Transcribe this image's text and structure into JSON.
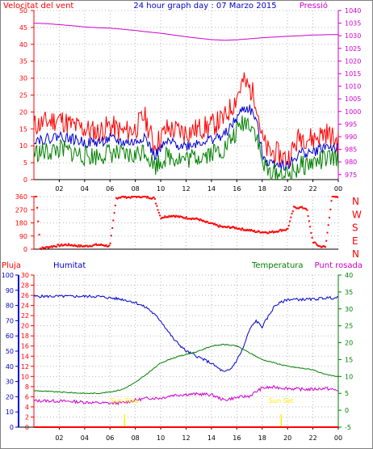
{
  "title": "24 hour graph day : 07 Marzo 2015",
  "colors": {
    "red": "#ff0000",
    "blue": "#0000cc",
    "green": "#008000",
    "magenta": "#cc00cc",
    "yellow": "#ffee00",
    "axis": "#000000",
    "grid": "#b8b8b8",
    "border": "#808080"
  },
  "chart_data": [
    {
      "type": "line",
      "title": "24 hour graph day : 07 Marzo 2015",
      "y_left_label": "Velocitat del vent",
      "y_right_label": "Pressió",
      "x_ticks": [
        "02",
        "04",
        "06",
        "08",
        "10",
        "12",
        "14",
        "16",
        "18",
        "20",
        "22",
        "00"
      ],
      "x_range": [
        0,
        24
      ],
      "y_left_ticks": [
        "0",
        "5",
        "10",
        "15",
        "20",
        "25",
        "30",
        "35",
        "40",
        "45",
        "50"
      ],
      "y_left_range": [
        0,
        50
      ],
      "y_right_ticks": [
        "975",
        "980",
        "985",
        "990",
        "995",
        "1000",
        "1005",
        "1010",
        "1015",
        "1020",
        "1025",
        "1030",
        "1035",
        "1040"
      ],
      "y_right_range": [
        973,
        1040
      ],
      "grid": true,
      "series": [
        {
          "axis": "right",
          "color": "magenta",
          "x": [
            0,
            1,
            2,
            3,
            4,
            5,
            6,
            7,
            8,
            9,
            10,
            11,
            12,
            13,
            14,
            15,
            16,
            17,
            18,
            19,
            20,
            21,
            22,
            23,
            24
          ],
          "y": [
            1035,
            1034.8,
            1034.4,
            1034,
            1033.5,
            1033.2,
            1033,
            1032.6,
            1032.1,
            1031.5,
            1031,
            1030.3,
            1029.6,
            1029,
            1028.5,
            1028.2,
            1028.4,
            1028.8,
            1029.2,
            1029.5,
            1029.8,
            1030,
            1030.3,
            1030.4,
            1030.5
          ]
        },
        {
          "axis": "left",
          "color": "red",
          "x": [
            0,
            1,
            2,
            3,
            4,
            5,
            6,
            7,
            8,
            8.7,
            9.5,
            10.5,
            12,
            13,
            14,
            15,
            15.8,
            16.5,
            17,
            17.5,
            18,
            18.5,
            19,
            20,
            21,
            22,
            23,
            24
          ],
          "y": [
            16,
            17,
            18,
            16,
            15,
            14,
            16,
            14,
            15,
            19,
            10,
            15,
            14,
            15,
            16,
            18,
            23,
            29,
            27,
            24,
            12,
            8,
            8,
            6,
            13,
            12,
            14,
            11
          ]
        },
        {
          "axis": "left",
          "color": "blue",
          "x": [
            0,
            1,
            2,
            3,
            4,
            5,
            6,
            7,
            8,
            8.7,
            9.5,
            10.5,
            12,
            13,
            14,
            15,
            15.8,
            16.5,
            17,
            17.5,
            18,
            18.5,
            19,
            20,
            21,
            22,
            23,
            24
          ],
          "y": [
            12,
            12,
            13,
            12,
            11,
            11,
            12,
            11,
            11,
            13,
            7,
            11,
            10,
            11,
            12,
            13,
            17,
            21,
            21,
            18,
            8,
            5,
            5,
            4,
            8,
            8,
            10,
            9
          ]
        },
        {
          "axis": "left",
          "color": "green",
          "x": [
            0,
            1,
            2,
            3,
            4,
            5,
            6,
            7,
            8,
            8.7,
            9.5,
            10.5,
            12,
            13,
            14,
            15,
            15.8,
            16.5,
            17,
            17.5,
            18,
            18.5,
            19,
            20,
            21,
            22,
            23,
            24
          ],
          "y": [
            8,
            8,
            9,
            8,
            7,
            7,
            8,
            7,
            7,
            9,
            4,
            7,
            6,
            7,
            8,
            9,
            13,
            17,
            17,
            14,
            5,
            2,
            2,
            1,
            4,
            5,
            6,
            6
          ]
        }
      ]
    },
    {
      "type": "scatter",
      "y_left_ticks": [
        "0",
        "90",
        "180",
        "270",
        "360"
      ],
      "y_range": [
        0,
        360
      ],
      "y_right_labels": [
        "N",
        "W",
        "S",
        "E",
        "N"
      ],
      "x_range": [
        0,
        24
      ],
      "grid": true,
      "series": [
        {
          "color": "red",
          "x": [
            0.2,
            0.5,
            1,
            1.5,
            2,
            2.5,
            3,
            3.5,
            4,
            4.5,
            5,
            5.5,
            6,
            6.5,
            7,
            7.5,
            8,
            8.5,
            9,
            9.5,
            10,
            10.5,
            11,
            11.5,
            12,
            12.5,
            13,
            13.5,
            14,
            14.5,
            15,
            15.5,
            16,
            16.5,
            17,
            17.5,
            18,
            18.5,
            19,
            19.5,
            20,
            20.5,
            21,
            21.5,
            22,
            22.5,
            23,
            23.5,
            24
          ],
          "y": [
            360,
            5,
            12,
            20,
            25,
            30,
            28,
            22,
            20,
            25,
            30,
            28,
            20,
            350,
            360,
            355,
            360,
            360,
            355,
            350,
            215,
            225,
            230,
            220,
            215,
            210,
            205,
            185,
            175,
            160,
            150,
            150,
            145,
            135,
            130,
            120,
            118,
            115,
            120,
            130,
            135,
            285,
            285,
            280,
            50,
            20,
            15,
            360,
            355
          ]
        }
      ]
    },
    {
      "type": "line",
      "y_far_left_label": "Pluja",
      "y_left_label": "Humitat",
      "y_right_label": "Temperatura",
      "y_far_right_label": "Punt rosada",
      "x_ticks": [
        "02",
        "04",
        "06",
        "08",
        "10",
        "12",
        "14",
        "16",
        "18",
        "20",
        "22",
        "00"
      ],
      "x_range": [
        0,
        24
      ],
      "y_far_left_ticks": [
        "0",
        "10",
        "20",
        "30",
        "40",
        "50",
        "60",
        "70",
        "80",
        "90",
        "100"
      ],
      "y_left_ticks": [
        "0",
        "2",
        "4",
        "6",
        "8",
        "10",
        "12",
        "14",
        "16",
        "18",
        "20",
        "22",
        "24",
        "26",
        "28",
        "30"
      ],
      "y_left_range": [
        0,
        30
      ],
      "y_right_ticks": [
        "-5",
        "0",
        "5",
        "10",
        "15",
        "20",
        "25",
        "30",
        "35",
        "40"
      ],
      "y_right_range": [
        -5,
        40
      ],
      "annotations": [
        {
          "text": "Sun Rise",
          "x": 7.15
        },
        {
          "text": "Sun Set",
          "x": 19.5
        }
      ],
      "grid": true,
      "series": [
        {
          "name": "Humitat",
          "color": "blue",
          "axis": "humidity",
          "x": [
            0,
            1,
            2,
            3,
            4,
            5,
            6,
            7,
            8,
            9,
            10,
            11,
            12,
            13,
            14,
            15,
            15.5,
            16,
            16.5,
            17,
            17.5,
            18,
            19,
            20,
            21,
            22,
            23,
            24
          ],
          "y": [
            86,
            86,
            86,
            86,
            86,
            86,
            85,
            84,
            82,
            78,
            70,
            58,
            50,
            46,
            42,
            36,
            38,
            44,
            52,
            64,
            70,
            66,
            80,
            84,
            84,
            84,
            85,
            85
          ]
        },
        {
          "name": "Temperatura",
          "color": "green",
          "axis": "temperature",
          "x": [
            0,
            1,
            2,
            3,
            4,
            5,
            6,
            7,
            8,
            9,
            10,
            11,
            12,
            13,
            14,
            15,
            16,
            17,
            18,
            19,
            20,
            21,
            22,
            23,
            24
          ],
          "y": [
            5.8,
            5.6,
            5.4,
            5.2,
            5.0,
            5.0,
            5.4,
            6.2,
            8.2,
            11,
            14,
            15.5,
            16.5,
            17.5,
            19,
            19.5,
            19,
            17,
            15,
            14,
            13,
            12.5,
            12,
            10.5,
            10
          ]
        },
        {
          "name": "Punt rosada",
          "color": "magenta",
          "axis": "dew",
          "x": [
            0,
            1,
            2,
            3,
            4,
            5,
            6,
            7,
            8,
            9,
            10,
            11,
            12,
            13,
            14,
            15,
            16,
            17,
            18,
            19,
            20,
            21,
            22,
            23,
            24
          ],
          "y": [
            2.8,
            2.8,
            2.7,
            2.6,
            2.4,
            2.2,
            2.1,
            2.2,
            3.0,
            3.6,
            3.6,
            4.5,
            4.7,
            4.8,
            4.6,
            3.0,
            3.8,
            4.2,
            6.6,
            6.8,
            6.5,
            6.2,
            6.2,
            6.5,
            5.8
          ]
        },
        {
          "name": "Pluja",
          "color": "red",
          "axis": "rain",
          "x": [
            0,
            24
          ],
          "y": [
            0,
            0
          ]
        }
      ]
    }
  ]
}
